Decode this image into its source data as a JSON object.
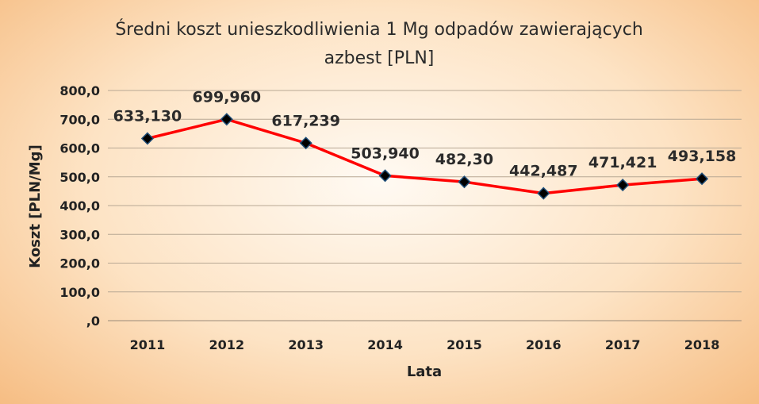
{
  "chart_data": {
    "type": "line",
    "title_line1": "Średni koszt unieszkodliwienia 1 Mg odpadów zawierających",
    "title_line2": "azbest [PLN]",
    "xlabel": "Lata",
    "ylabel": "Koszt [PLN/Mg]",
    "categories": [
      "2011",
      "2012",
      "2013",
      "2014",
      "2015",
      "2016",
      "2017",
      "2018"
    ],
    "series": [
      {
        "values": [
          633.13,
          699.96,
          617.239,
          503.94,
          482.3,
          442.487,
          471.421,
          493.158
        ],
        "data_labels": [
          "633,130",
          "699,960",
          "617,239",
          "503,940",
          "482,30",
          "442,487",
          "471,421",
          "493,158"
        ]
      }
    ],
    "ylim": [
      0,
      800
    ],
    "y_ticks": [
      0,
      100,
      200,
      300,
      400,
      500,
      600,
      700,
      800
    ],
    "y_tick_labels": [
      ",0",
      "100,0",
      "200,0",
      "300,0",
      "400,0",
      "500,0",
      "600,0",
      "700,0",
      "800,0"
    ],
    "grid": true,
    "line_color": "#ff0000",
    "marker_color": "#000000",
    "marker_edge_color": "#1f4e79",
    "legend": "none"
  }
}
